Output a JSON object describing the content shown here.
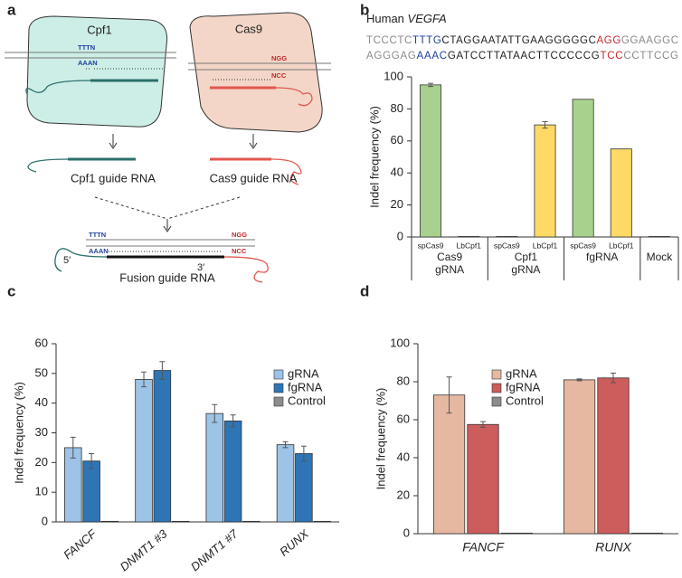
{
  "panel_labels": [
    "a",
    "b",
    "c",
    "d"
  ],
  "diagram": {
    "cpf1": "Cpf1",
    "cas9": "Cas9",
    "cpf1_pam_top": "TTTN",
    "cpf1_pam_bottom": "AAAN",
    "cas9_pam_top": "NGG",
    "cas9_pam_bottom": "NCC",
    "cpf1_guide": "Cpf1 guide RNA",
    "cas9_guide": "Cas9 guide RNA",
    "fusion_pam_left_top": "TTTN",
    "fusion_pam_left_bottom": "AAAN",
    "fusion_pam_right_top": "NGG",
    "fusion_pam_right_bottom": "NCC",
    "five_prime": "5′",
    "three_prime": "3′",
    "fusion_guide": "Fusion guide RNA"
  },
  "sequence": {
    "species": "Human",
    "gene": "VEGFA",
    "lines": [
      [
        {
          "text": "TCCCTC",
          "color": "#8a8a8a"
        },
        {
          "text": "TTTG",
          "color": "#1f3f99"
        },
        {
          "text": "CTAGGAATATTGAAGGGGGC",
          "color": "#222222"
        },
        {
          "text": "AGG",
          "color": "#c0282d"
        },
        {
          "text": "GGAAGGC",
          "color": "#8a8a8a"
        }
      ],
      [
        {
          "text": "AGGGAG",
          "color": "#8a8a8a"
        },
        {
          "text": "AAAC",
          "color": "#1f3f99"
        },
        {
          "text": "GATCCTTATAACTTCCCCCG",
          "color": "#222222"
        },
        {
          "text": "TCC",
          "color": "#c0282d"
        },
        {
          "text": "CCTTCCG",
          "color": "#8a8a8a"
        }
      ]
    ]
  },
  "chart_data": [
    {
      "type": "bar",
      "ylabel": "Indel frequency (%)",
      "ylim": [
        0,
        100
      ],
      "yticks": [
        0,
        20,
        40,
        60,
        80,
        100
      ],
      "groups": [
        {
          "label": "Cas9 gRNA",
          "categories": [
            "spCas9",
            "LbCpf1"
          ],
          "values": [
            95,
            0.3
          ],
          "errors": [
            1,
            0
          ],
          "colors": [
            "#a9d18e",
            "#ffd966"
          ]
        },
        {
          "label": "Cpf1 gRNA",
          "categories": [
            "spCas9",
            "LbCpf1"
          ],
          "values": [
            0.3,
            70
          ],
          "errors": [
            0,
            2
          ],
          "colors": [
            "#a9d18e",
            "#ffd966"
          ]
        },
        {
          "label": "fgRNA",
          "categories": [
            "spCas9",
            "LbCpf1"
          ],
          "values": [
            86,
            55
          ],
          "errors": [
            0,
            0
          ],
          "colors": [
            "#a9d18e",
            "#ffd966"
          ]
        },
        {
          "label": "Mock",
          "categories": [
            null
          ],
          "values": [
            0.3
          ],
          "errors": [
            0
          ],
          "colors": [
            "#999999"
          ]
        }
      ]
    },
    {
      "type": "bar",
      "ylabel": "Indel frequency (%)",
      "ylim": [
        0,
        60
      ],
      "yticks": [
        0,
        10,
        20,
        30,
        40,
        50,
        60
      ],
      "categories": [
        "FANCF",
        "DNMT1 #3",
        "DNMT1 #7",
        "RUNX"
      ],
      "label_style": "rotated",
      "legend": "upper right",
      "series": [
        {
          "name": "gRNA",
          "color": "#9dc3e6",
          "values": [
            25,
            48,
            36.5,
            26
          ],
          "errors": [
            3.5,
            2.5,
            3,
            1
          ]
        },
        {
          "name": "fgRNA",
          "color": "#2e75b6",
          "values": [
            20.5,
            51,
            34,
            23
          ],
          "errors": [
            2.5,
            3,
            2,
            2.5
          ]
        },
        {
          "name": "Control",
          "color": "#8c8c8c",
          "values": [
            0.2,
            0.2,
            0.2,
            0.2
          ],
          "errors": [
            0,
            0,
            0,
            0
          ]
        }
      ]
    },
    {
      "type": "bar",
      "ylabel": "Indel frequency (%)",
      "ylim": [
        0,
        100
      ],
      "yticks": [
        0,
        20,
        40,
        60,
        80,
        100
      ],
      "categories": [
        "FANCF",
        "RUNX"
      ],
      "label_style": "flat",
      "legend": "upper left",
      "series": [
        {
          "name": "gRNA",
          "color": "#e6b8a2",
          "values": [
            73,
            81
          ],
          "errors": [
            9.5,
            0.5
          ]
        },
        {
          "name": "fgRNA",
          "color": "#cd5c5c",
          "values": [
            57.5,
            82
          ],
          "errors": [
            1.5,
            2.5
          ]
        },
        {
          "name": "Control",
          "color": "#8c8c8c",
          "values": [
            0.3,
            0.3
          ],
          "errors": [
            0,
            0
          ]
        }
      ]
    }
  ]
}
